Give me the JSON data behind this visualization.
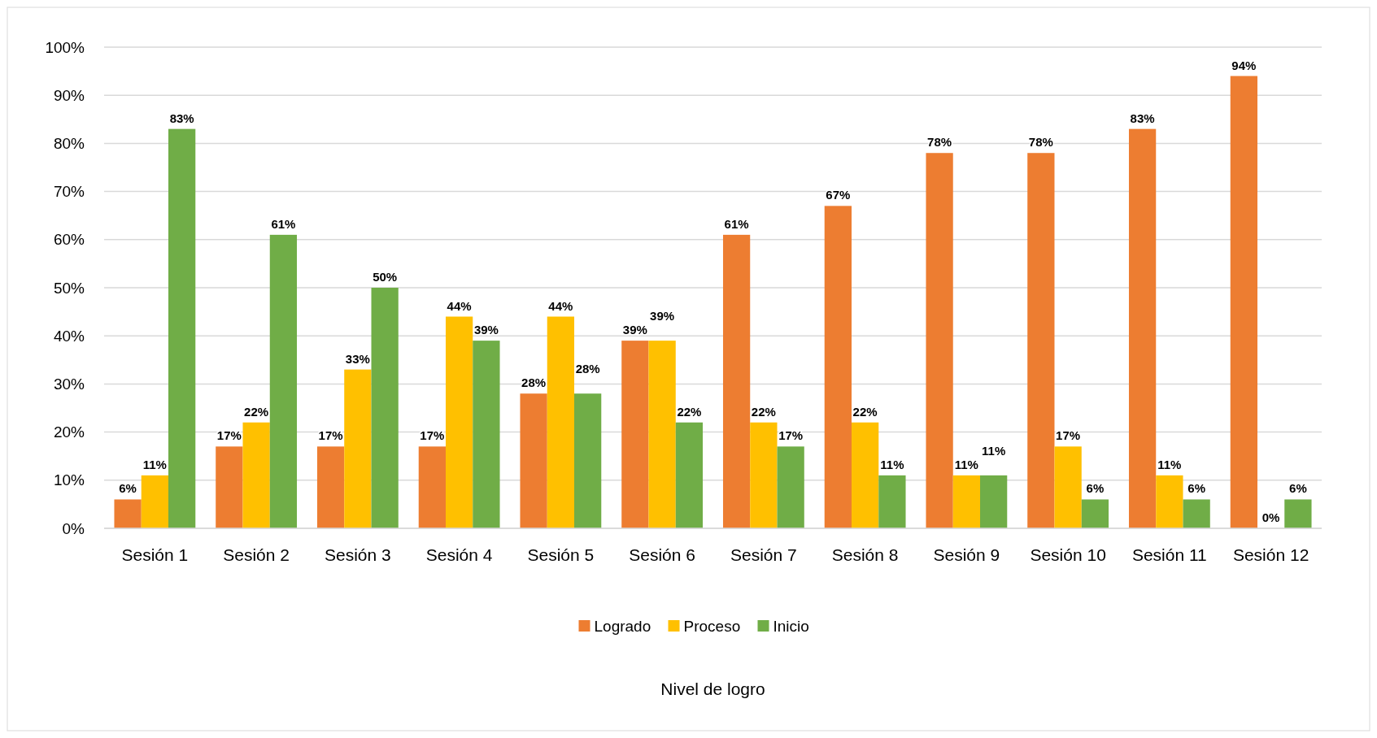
{
  "chart_data": {
    "type": "bar",
    "annotations": [
      "Nivel de logro"
    ],
    "categories": [
      "Sesión 1",
      "Sesión 2",
      "Sesión 3",
      "Sesión 4",
      "Sesión 5",
      "Sesión 6",
      "Sesión 7",
      "Sesión 8",
      "Sesión 9",
      "Sesión 10",
      "Sesión 11",
      "Sesión 12"
    ],
    "series": [
      {
        "name": "Logrado",
        "color": "#ed7d31",
        "values": [
          6,
          17,
          17,
          17,
          28,
          39,
          61,
          67,
          78,
          78,
          83,
          94
        ],
        "value_labels": [
          "6%",
          "17%",
          "17%",
          "17%",
          "28%",
          "39%",
          "61%",
          "67%",
          "78%",
          "78%",
          "83%",
          "94%"
        ]
      },
      {
        "name": "Proceso",
        "color": "#ffc000",
        "values": [
          11,
          22,
          33,
          44,
          44,
          39,
          22,
          22,
          11,
          17,
          11,
          0
        ],
        "value_labels": [
          "11%",
          "22%",
          "33%",
          "44%",
          "44%",
          "39%",
          "22%",
          "22%",
          "11%",
          "17%",
          "11%",
          "0%"
        ]
      },
      {
        "name": "Inicio",
        "color": "#70ad47",
        "values": [
          83,
          61,
          50,
          39,
          28,
          22,
          17,
          11,
          11,
          6,
          6,
          6
        ],
        "value_labels": [
          "83%",
          "61%",
          "50%",
          "39%",
          "28%",
          "22%",
          "17%",
          "11%",
          "11%",
          "6%",
          "6%",
          "6%"
        ]
      }
    ],
    "ylim": [
      0,
      100
    ],
    "yticks": [
      {
        "value": 0,
        "label": "0%"
      },
      {
        "value": 10,
        "label": "10%"
      },
      {
        "value": 20,
        "label": "20%"
      },
      {
        "value": 30,
        "label": "30%"
      },
      {
        "value": 40,
        "label": "40%"
      },
      {
        "value": 50,
        "label": "50%"
      },
      {
        "value": 60,
        "label": "60%"
      },
      {
        "value": 70,
        "label": "70%"
      },
      {
        "value": 80,
        "label": "80%"
      },
      {
        "value": 90,
        "label": "90%"
      },
      {
        "value": 100,
        "label": "100%"
      }
    ],
    "grid": "y",
    "legend": "bottom"
  }
}
